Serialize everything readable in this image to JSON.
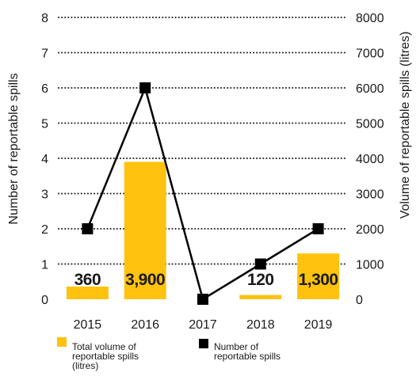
{
  "chart_data": {
    "type": "bar",
    "categories": [
      "2015",
      "2016",
      "2017",
      "2018",
      "2019"
    ],
    "series": [
      {
        "name": "Total volume of reportable spills (litres)",
        "type": "bar",
        "axis": "right",
        "values": [
          360,
          3900,
          0,
          120,
          1300
        ],
        "labels": [
          "360",
          "3,900",
          "",
          "120",
          "1,300"
        ]
      },
      {
        "name": "Number of reportable spills",
        "type": "line",
        "axis": "left",
        "values": [
          2,
          6,
          0,
          1,
          2
        ]
      }
    ],
    "left_axis": {
      "label": "Number of reportable spills",
      "ylim": [
        0,
        8
      ],
      "ticks": [
        "0",
        "1",
        "2",
        "3",
        "4",
        "5",
        "6",
        "7",
        "8"
      ]
    },
    "right_axis": {
      "label": "Volume of reportable spills (litres)",
      "ylim": [
        0,
        8000
      ],
      "ticks": [
        "0",
        "1000",
        "2000",
        "3000",
        "4000",
        "5000",
        "6000",
        "7000",
        "8000"
      ]
    },
    "grid": "dotted",
    "legend_position": "bottom",
    "legend": {
      "bar_lines": [
        "Total volume of",
        "reportable spills",
        "(litres)"
      ],
      "line_lines": [
        "Number of",
        "reportable spills"
      ]
    },
    "colors": {
      "bar": "#ffc20e",
      "line": "#000000",
      "marker": "#000000",
      "grid": "#1a1a1a"
    }
  }
}
